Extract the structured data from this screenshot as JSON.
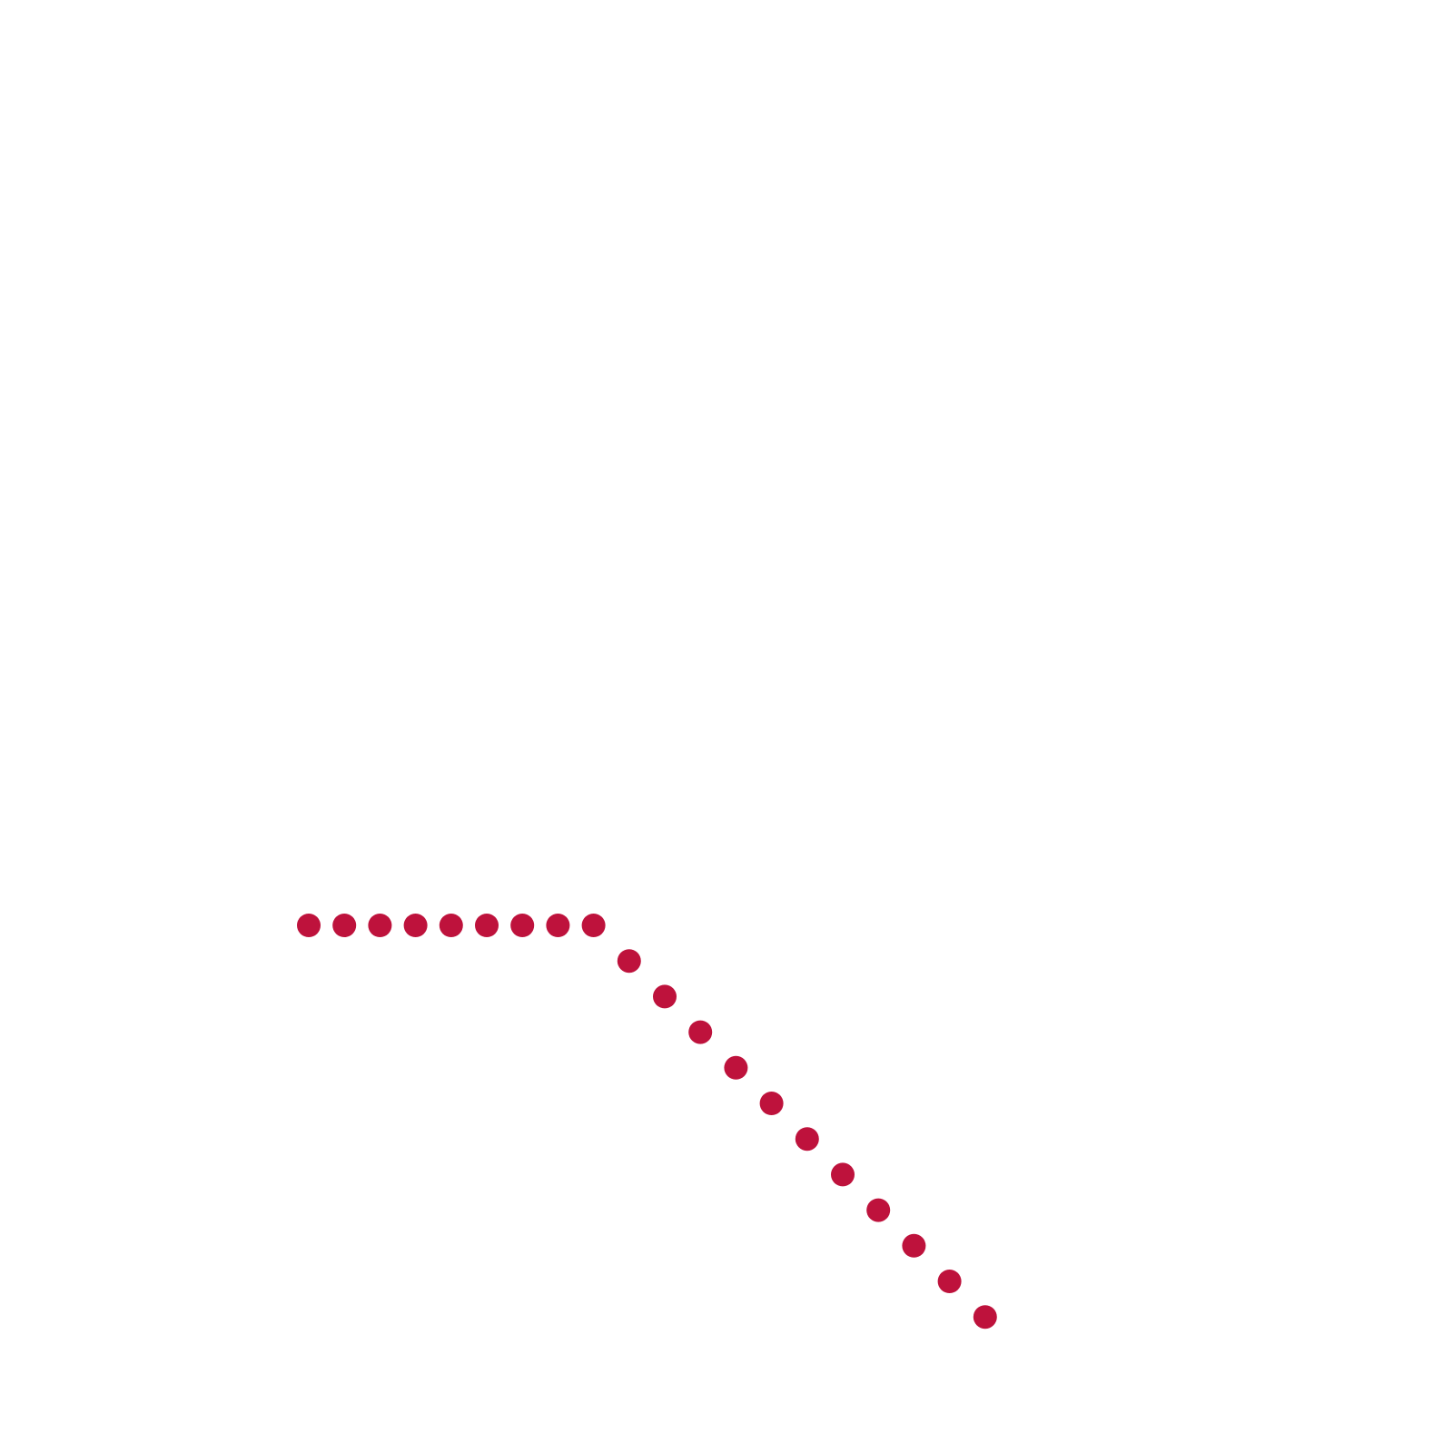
{
  "background_color": "#ffffff",
  "dot_color": "#BE123C",
  "dot_path": {
    "segments": [
      {
        "direction": "right",
        "dot_count": 9
      },
      {
        "direction": "down-right",
        "dot_count": 11
      }
    ],
    "total_dots": 20
  }
}
